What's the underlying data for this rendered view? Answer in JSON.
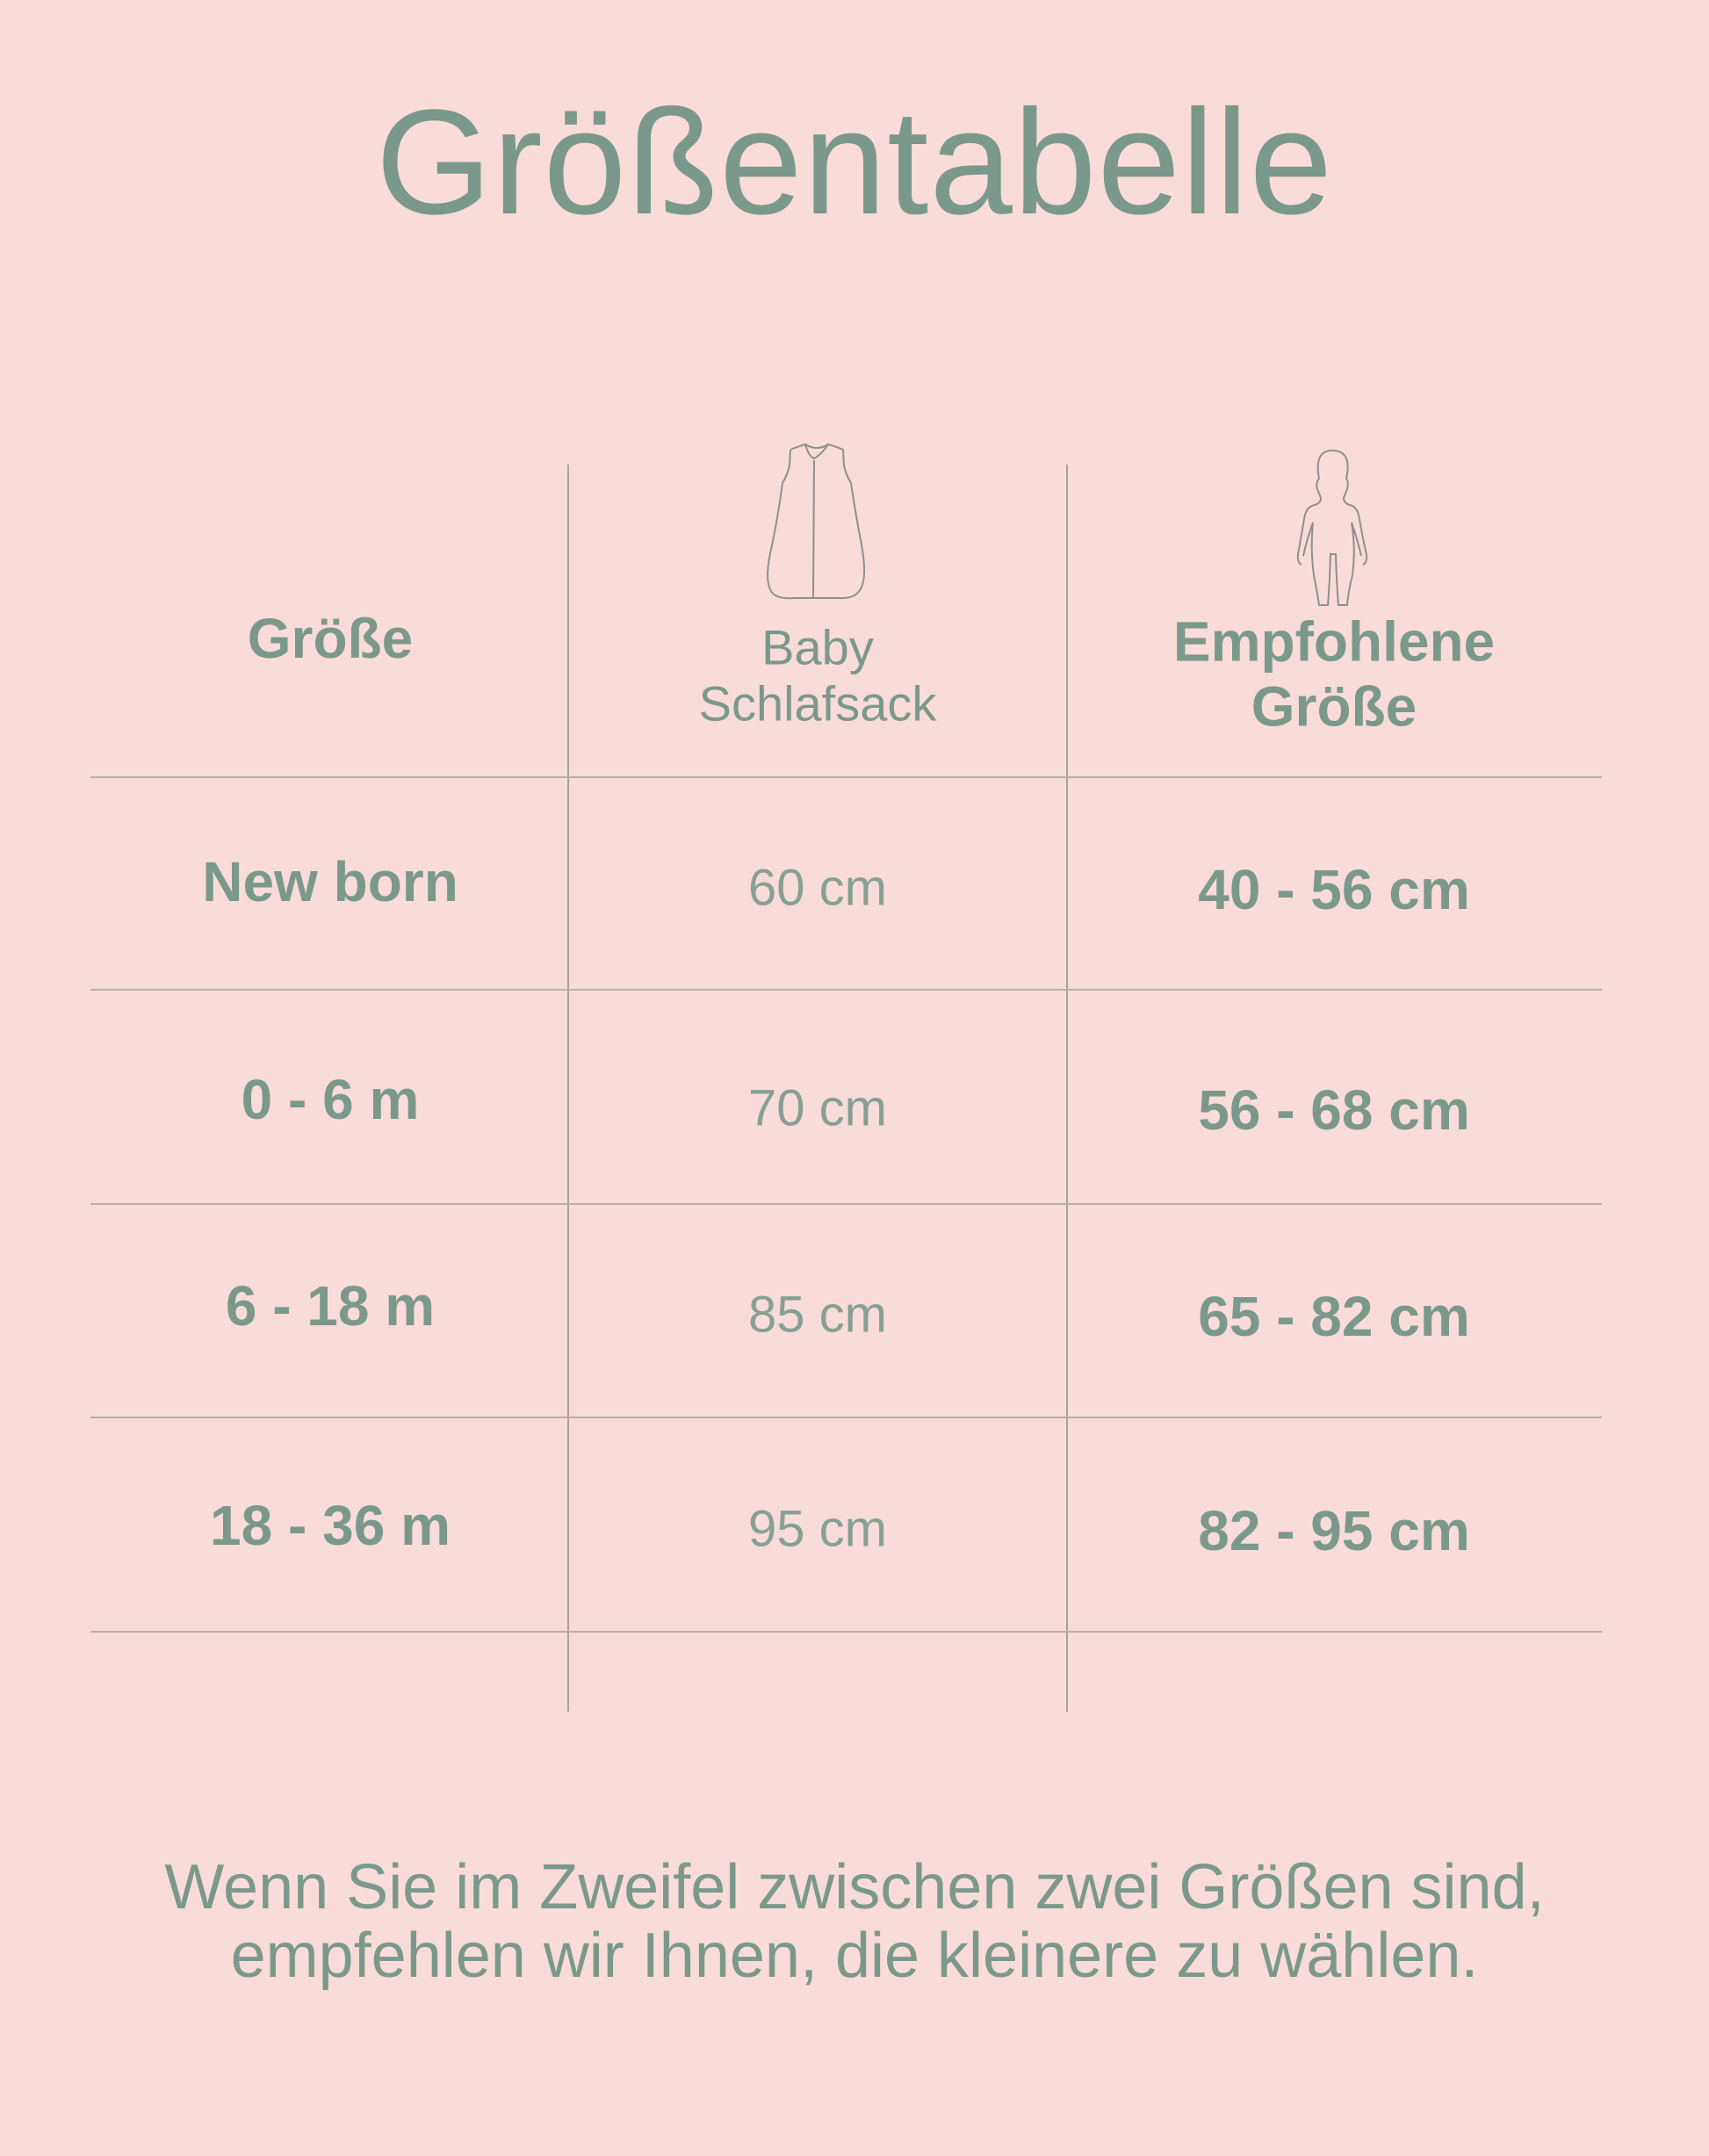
{
  "title": "Größentabelle",
  "colors": {
    "background": "#f9dcd9",
    "text": "#7b988c",
    "lines": "#a8a09d"
  },
  "table": {
    "headers": [
      {
        "lines": [
          "Größe"
        ],
        "icon": null
      },
      {
        "lines": [
          "Baby",
          "Schlafsack"
        ],
        "icon": "sleeping-bag-icon"
      },
      {
        "lines": [
          "Empfohlene",
          "Größe"
        ],
        "icon": "baby-figure-icon"
      }
    ],
    "rows": [
      {
        "size": "New born",
        "sleeping_bag": "60 cm",
        "recommended": "40 - 56 cm"
      },
      {
        "size": "0 - 6 m",
        "sleeping_bag": "70 cm",
        "recommended": "56 - 68 cm"
      },
      {
        "size": "6 - 18 m",
        "sleeping_bag": "85 cm",
        "recommended": "65 - 82 cm"
      },
      {
        "size": "18 - 36 m",
        "sleeping_bag": "95 cm",
        "recommended": "82 - 95 cm"
      }
    ]
  },
  "footer": {
    "line1": "Wenn Sie im Zweifel zwischen zwei Größen sind,",
    "line2": "empfehlen wir Ihnen, die kleinere zu wählen."
  }
}
